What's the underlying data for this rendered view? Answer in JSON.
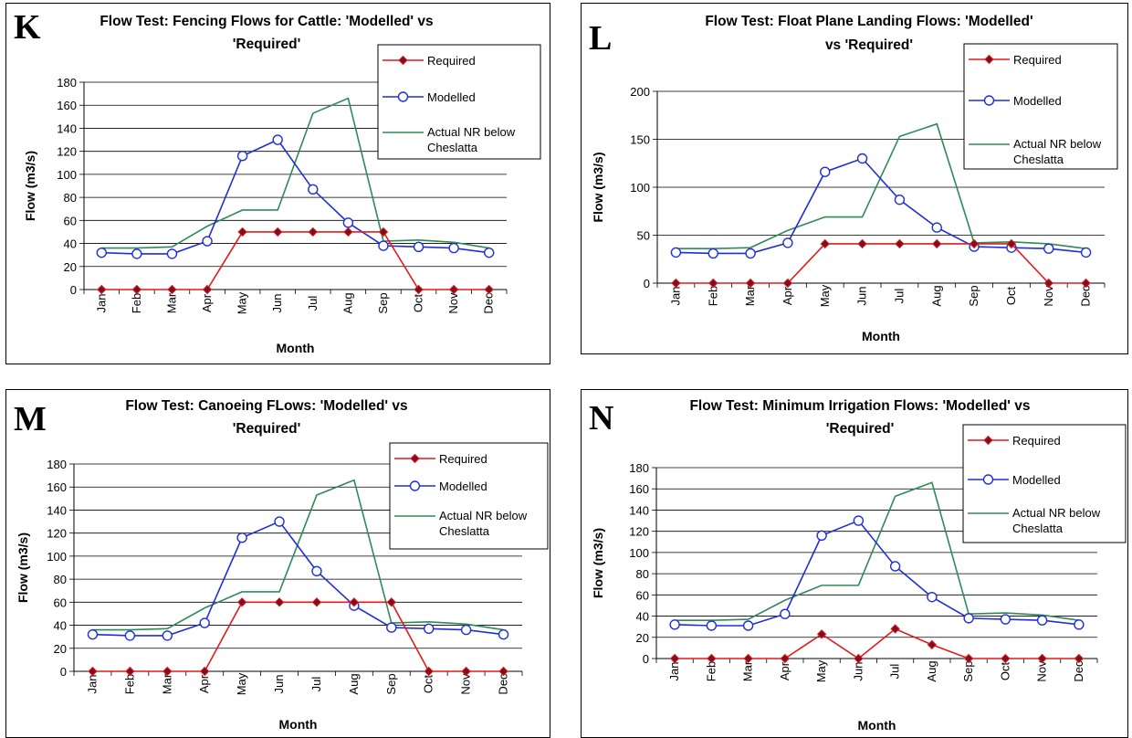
{
  "colors": {
    "required": "#e31a1c",
    "required_marker": "#7a1020",
    "modelled": "#1f2fd6",
    "actual": "#2e8b57"
  },
  "chart_data": [
    {
      "letter": "K",
      "type": "line",
      "title_lines": [
        "Flow Test: Fencing Flows for Cattle: 'Modelled' vs",
        "'Required'"
      ],
      "xlabel": "Month",
      "ylabel": "Flow (m3/s)",
      "categories": [
        "Jan",
        "Feb",
        "Mar",
        "Apr",
        "May",
        "Jun",
        "Jul",
        "Aug",
        "Sep",
        "Oct",
        "Nov",
        "Dec"
      ],
      "ylim": [
        0,
        180
      ],
      "yticks": [
        0,
        20,
        40,
        60,
        80,
        100,
        120,
        140,
        160,
        180
      ],
      "grid": true,
      "legend": "top-right",
      "series": [
        {
          "name": "Required",
          "values": [
            0,
            0,
            0,
            0,
            50,
            50,
            50,
            50,
            50,
            0,
            0,
            0
          ]
        },
        {
          "name": "Modelled",
          "values": [
            32,
            31,
            31,
            42,
            116,
            130,
            87,
            58,
            38,
            37,
            36,
            32
          ]
        },
        {
          "name_lines": [
            "Actual NR below",
            "Cheslatta"
          ],
          "values": [
            36,
            36,
            37,
            55,
            69,
            69,
            153,
            166,
            42,
            43,
            41,
            36
          ]
        }
      ]
    },
    {
      "letter": "L",
      "type": "line",
      "title_lines": [
        "Flow Test: Float Plane Landing Flows: 'Modelled'",
        "vs 'Required'"
      ],
      "xlabel": "Month",
      "ylabel": "Flow (m3/s)",
      "categories": [
        "Jan",
        "Feb",
        "Mar",
        "Apr",
        "May",
        "Jun",
        "Jul",
        "Aug",
        "Sep",
        "Oct",
        "Nov",
        "Dec"
      ],
      "ylim": [
        0,
        200
      ],
      "yticks": [
        0,
        50,
        100,
        150,
        200
      ],
      "grid": true,
      "legend": "top-right",
      "series": [
        {
          "name": "Required",
          "values": [
            0,
            0,
            0,
            0,
            41,
            41,
            41,
            41,
            41,
            41,
            0,
            0
          ]
        },
        {
          "name": "Modelled",
          "values": [
            32,
            31,
            31,
            42,
            116,
            130,
            87,
            58,
            38,
            37,
            36,
            32
          ]
        },
        {
          "name_lines": [
            "Actual NR below",
            "Cheslatta"
          ],
          "values": [
            36,
            36,
            37,
            55,
            69,
            69,
            153,
            166,
            42,
            43,
            41,
            36
          ]
        }
      ]
    },
    {
      "letter": "M",
      "type": "line",
      "title_lines": [
        "Flow Test: Canoeing FLows: 'Modelled' vs",
        "'Required'"
      ],
      "xlabel": "Month",
      "ylabel": "Flow (m3/s)",
      "categories": [
        "Jan",
        "Feb",
        "Mar",
        "Apr",
        "May",
        "Jun",
        "Jul",
        "Aug",
        "Sep",
        "Oct",
        "Nov",
        "Dec"
      ],
      "ylim": [
        0,
        180
      ],
      "yticks": [
        0,
        20,
        40,
        60,
        80,
        100,
        120,
        140,
        160,
        180
      ],
      "grid": true,
      "legend": "top-right",
      "series": [
        {
          "name": "Required",
          "values": [
            0,
            0,
            0,
            0,
            60,
            60,
            60,
            60,
            60,
            0,
            0,
            0
          ]
        },
        {
          "name": "Modelled",
          "values": [
            32,
            31,
            31,
            42,
            116,
            130,
            87,
            57,
            38,
            37,
            36,
            32
          ]
        },
        {
          "name_lines": [
            "Actual NR below",
            "Cheslatta"
          ],
          "values": [
            36,
            36,
            37,
            55,
            69,
            69,
            153,
            166,
            42,
            43,
            41,
            36
          ]
        }
      ]
    },
    {
      "letter": "N",
      "type": "line",
      "title_lines": [
        "Flow Test: Minimum Irrigation Flows: 'Modelled' vs",
        "'Required'"
      ],
      "xlabel": "Month",
      "ylabel": "Flow (m3/s)",
      "categories": [
        "Jan",
        "Feb",
        "Mar",
        "Apr",
        "May",
        "Jun",
        "Jul",
        "Aug",
        "Sep",
        "Oct",
        "Nov",
        "Dec"
      ],
      "ylim": [
        0,
        180
      ],
      "yticks": [
        0,
        20,
        40,
        60,
        80,
        100,
        120,
        140,
        160,
        180
      ],
      "grid": true,
      "legend": "top-right",
      "series": [
        {
          "name": "Required",
          "values": [
            0,
            0,
            0,
            0,
            23,
            0,
            28,
            13,
            0,
            0,
            0,
            0
          ]
        },
        {
          "name": "Modelled",
          "values": [
            32,
            31,
            31,
            42,
            116,
            130,
            87,
            58,
            38,
            37,
            36,
            32
          ]
        },
        {
          "name_lines": [
            "Actual NR below",
            "Cheslatta"
          ],
          "values": [
            36,
            36,
            37,
            55,
            69,
            69,
            153,
            166,
            42,
            43,
            41,
            36
          ]
        }
      ]
    }
  ]
}
